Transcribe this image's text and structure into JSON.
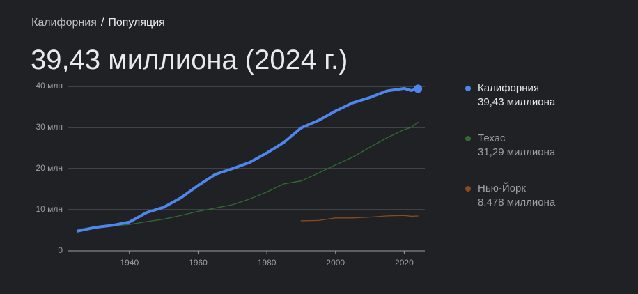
{
  "breadcrumb": {
    "parent": "Калифорния",
    "separator": "/",
    "current": "Популяция"
  },
  "headline": "39,43 миллиона (2024 г.)",
  "chart_data": {
    "type": "line",
    "x": [
      1925,
      1930,
      1935,
      1940,
      1945,
      1950,
      1955,
      1960,
      1965,
      1970,
      1975,
      1980,
      1985,
      1990,
      1995,
      2000,
      2005,
      2010,
      2015,
      2020,
      2022,
      2024
    ],
    "series": [
      {
        "name": "Калифорния",
        "color": "#4f86ed",
        "legend_value": "39,43 миллиона",
        "values": [
          4.8,
          5.7,
          6.2,
          7.0,
          9.3,
          10.6,
          12.9,
          15.9,
          18.6,
          20.0,
          21.5,
          23.8,
          26.4,
          29.9,
          31.7,
          34.0,
          36.0,
          37.3,
          38.9,
          39.5,
          39.0,
          39.43
        ]
      },
      {
        "name": "Техас",
        "color": "#2f6b35",
        "legend_value": "31,29 миллиона",
        "values": [
          5.2,
          5.8,
          6.1,
          6.4,
          7.1,
          7.7,
          8.6,
          9.6,
          10.4,
          11.2,
          12.6,
          14.3,
          16.3,
          17.0,
          18.9,
          20.9,
          22.8,
          25.2,
          27.5,
          29.5,
          30.0,
          31.29
        ]
      },
      {
        "name": "Нью-Йорк",
        "color": "#8a4a1c",
        "legend_value": "8,478 миллиона",
        "values": [
          null,
          null,
          null,
          null,
          null,
          null,
          null,
          null,
          null,
          null,
          null,
          null,
          null,
          7.3,
          7.4,
          8.0,
          8.0,
          8.2,
          8.5,
          8.6,
          8.4,
          8.478
        ]
      }
    ],
    "xlim": [
      1922,
      2026
    ],
    "ylim": [
      0,
      40
    ],
    "xticks": [
      1940,
      1960,
      1980,
      2000,
      2020
    ],
    "yticks": [
      0,
      {
        "value": 10,
        "label": "10 млн"
      },
      {
        "value": 20,
        "label": "20 млн"
      },
      {
        "value": 30,
        "label": "30 млн"
      },
      {
        "value": 40,
        "label": "40 млн"
      }
    ],
    "grid": true
  }
}
